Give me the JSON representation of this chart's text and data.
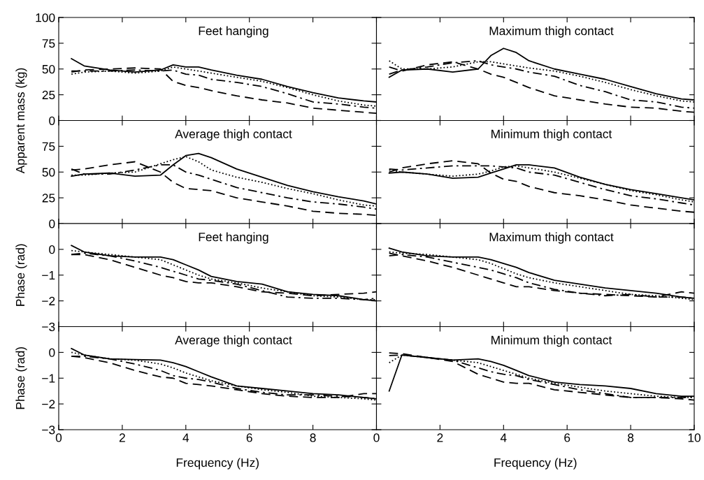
{
  "chart_data": [
    {
      "type": "line",
      "title": "Feet hanging",
      "ylabel": "Apparent mass (kg)",
      "x": [
        0.4,
        0.8,
        1.6,
        2.4,
        3.2,
        3.6,
        4,
        4.4,
        4.8,
        5.6,
        6.4,
        7.2,
        8,
        8.8,
        9.6,
        10
      ],
      "xlim": [
        0,
        10
      ],
      "xticks": [
        0,
        2,
        4,
        6,
        8
      ],
      "ylim": [
        0,
        100
      ],
      "yticks": [
        0,
        25,
        50,
        75,
        100
      ],
      "tick_labels": "y",
      "grid": false,
      "series": [
        {
          "color": "#000000",
          "line_style": "solid",
          "values": [
            60,
            53,
            49,
            47,
            49,
            54,
            52,
            52,
            49,
            44,
            40,
            33,
            27,
            22,
            19,
            18
          ]
        },
        {
          "color": "#000000",
          "line_style": "dotted",
          "values": [
            45,
            47,
            48,
            46,
            48,
            52,
            50,
            48,
            46,
            42,
            38,
            32,
            25,
            19,
            15,
            14
          ]
        },
        {
          "color": "#000000",
          "line_style": "dashdot",
          "values": [
            48,
            48,
            48,
            49,
            48,
            49,
            45,
            44,
            40,
            37,
            33,
            26,
            18,
            16,
            13,
            12
          ]
        },
        {
          "color": "#000000",
          "line_style": "dashed",
          "values": [
            47,
            49,
            50,
            51,
            50,
            38,
            34,
            32,
            29,
            24,
            20,
            17,
            12,
            10,
            8,
            7
          ]
        }
      ]
    },
    {
      "type": "line",
      "title": "Maximum thigh contact",
      "x": [
        0.4,
        0.8,
        1.6,
        2.4,
        3.2,
        3.6,
        4,
        4.4,
        4.8,
        5.6,
        6.4,
        7.2,
        8,
        8.8,
        9.6,
        10
      ],
      "xlim": [
        0,
        10
      ],
      "xticks": [
        0,
        2,
        4,
        6,
        8,
        10
      ],
      "ylim": [
        0,
        100
      ],
      "yticks": [
        0,
        25,
        50,
        75,
        100
      ],
      "tick_labels": false,
      "grid": false,
      "series": [
        {
          "color": "#000000",
          "line_style": "solid",
          "values": [
            42,
            49,
            50,
            47,
            50,
            63,
            70,
            66,
            58,
            50,
            45,
            40,
            33,
            26,
            21,
            20
          ]
        },
        {
          "color": "#000000",
          "line_style": "dotted",
          "values": [
            58,
            50,
            50,
            52,
            57,
            57,
            55,
            53,
            51,
            48,
            43,
            37,
            30,
            24,
            19,
            18
          ]
        },
        {
          "color": "#000000",
          "line_style": "dashdot",
          "values": [
            45,
            49,
            52,
            56,
            58,
            54,
            52,
            50,
            47,
            43,
            34,
            28,
            20,
            18,
            13,
            12
          ]
        },
        {
          "color": "#000000",
          "line_style": "dashed",
          "values": [
            52,
            48,
            54,
            57,
            50,
            45,
            42,
            37,
            32,
            24,
            20,
            16,
            13,
            12,
            9,
            8
          ]
        }
      ]
    },
    {
      "type": "line",
      "title": "Average thigh contact",
      "x": [
        0.4,
        0.8,
        1.6,
        2.4,
        3.2,
        3.6,
        4,
        4.4,
        4.8,
        5.6,
        6.4,
        7.2,
        8,
        8.8,
        9.6,
        10
      ],
      "xlim": [
        0,
        10
      ],
      "xticks": [
        0,
        2,
        4,
        6,
        8
      ],
      "ylim": [
        0,
        100
      ],
      "yticks": [
        0,
        25,
        50,
        75
      ],
      "tick_labels": "y",
      "grid": false,
      "series": [
        {
          "color": "#000000",
          "line_style": "solid",
          "values": [
            46,
            48,
            49,
            46,
            47,
            57,
            66,
            68,
            64,
            53,
            45,
            37,
            31,
            26,
            22,
            19
          ]
        },
        {
          "color": "#000000",
          "line_style": "dotted",
          "values": [
            47,
            47,
            49,
            50,
            58,
            62,
            65,
            60,
            52,
            45,
            40,
            34,
            29,
            23,
            18,
            17
          ]
        },
        {
          "color": "#000000",
          "line_style": "dashdot",
          "values": [
            53,
            48,
            48,
            52,
            57,
            57,
            50,
            47,
            43,
            35,
            30,
            25,
            21,
            19,
            16,
            14
          ]
        },
        {
          "color": "#000000",
          "line_style": "dashed",
          "values": [
            52,
            53,
            57,
            60,
            50,
            40,
            34,
            33,
            32,
            25,
            21,
            17,
            12,
            10,
            9,
            8
          ]
        }
      ]
    },
    {
      "type": "line",
      "title": "Minimum thigh contact",
      "x": [
        0.4,
        0.8,
        1.6,
        2.4,
        3.2,
        3.6,
        4,
        4.4,
        4.8,
        5.6,
        6.4,
        7.2,
        8,
        8.8,
        9.6,
        10
      ],
      "xlim": [
        0,
        10
      ],
      "xticks": [
        0,
        2,
        4,
        6,
        8,
        10
      ],
      "ylim": [
        0,
        100
      ],
      "yticks": [
        0,
        25,
        50,
        75,
        100
      ],
      "tick_labels": false,
      "grid": false,
      "series": [
        {
          "color": "#000000",
          "line_style": "solid",
          "values": [
            49,
            50,
            48,
            44,
            45,
            49,
            53,
            57,
            57,
            54,
            45,
            38,
            33,
            29,
            25,
            23
          ]
        },
        {
          "color": "#000000",
          "line_style": "dotted",
          "values": [
            52,
            50,
            48,
            46,
            48,
            51,
            55,
            56,
            54,
            50,
            44,
            38,
            32,
            28,
            23,
            21
          ]
        },
        {
          "color": "#000000",
          "line_style": "dashdot",
          "values": [
            53,
            52,
            54,
            56,
            56,
            56,
            55,
            54,
            50,
            47,
            40,
            33,
            27,
            24,
            20,
            18
          ]
        },
        {
          "color": "#000000",
          "line_style": "dashed",
          "values": [
            50,
            54,
            58,
            61,
            58,
            49,
            43,
            41,
            36,
            30,
            27,
            23,
            18,
            15,
            12,
            11
          ]
        }
      ]
    },
    {
      "type": "line",
      "title": "Feet hanging",
      "ylabel": "Phase (rad)",
      "x": [
        0.4,
        0.8,
        1.6,
        2.4,
        3.2,
        3.6,
        4,
        4.4,
        4.8,
        5.6,
        6.4,
        7.2,
        8,
        8.8,
        9.6,
        10
      ],
      "xlim": [
        0,
        10
      ],
      "xticks": [
        0,
        2,
        4,
        6,
        8
      ],
      "ylim": [
        -3,
        1
      ],
      "yticks": [
        -3,
        -2,
        -1,
        0
      ],
      "tick_labels": "y",
      "grid": false,
      "series": [
        {
          "color": "#000000",
          "line_style": "solid",
          "values": [
            0.15,
            -0.1,
            -0.25,
            -0.3,
            -0.3,
            -0.4,
            -0.6,
            -0.8,
            -1.05,
            -1.25,
            -1.35,
            -1.65,
            -1.75,
            -1.8,
            -1.95,
            -2.0
          ]
        },
        {
          "color": "#000000",
          "line_style": "dotted",
          "values": [
            -0.05,
            -0.1,
            -0.2,
            -0.3,
            -0.4,
            -0.6,
            -0.8,
            -1.0,
            -1.15,
            -1.3,
            -1.5,
            -1.65,
            -1.8,
            -1.85,
            -1.95,
            -1.95
          ]
        },
        {
          "color": "#000000",
          "line_style": "dashdot",
          "values": [
            -0.2,
            -0.15,
            -0.25,
            -0.45,
            -0.7,
            -0.85,
            -1.0,
            -1.15,
            -1.2,
            -1.35,
            -1.6,
            -1.85,
            -1.9,
            -1.9,
            -1.95,
            -1.9
          ]
        },
        {
          "color": "#000000",
          "line_style": "dashed",
          "values": [
            -0.2,
            -0.2,
            -0.4,
            -0.7,
            -1.0,
            -1.1,
            -1.25,
            -1.3,
            -1.3,
            -1.45,
            -1.65,
            -1.7,
            -1.8,
            -1.75,
            -1.7,
            -1.65
          ]
        }
      ]
    },
    {
      "type": "line",
      "title": "Maximum thigh contact",
      "x": [
        0.4,
        0.8,
        1.6,
        2.4,
        3.2,
        3.6,
        4,
        4.4,
        4.8,
        5.6,
        6.4,
        7.2,
        8,
        8.8,
        9.6,
        10
      ],
      "xlim": [
        0,
        10
      ],
      "xticks": [
        0,
        2,
        4,
        6,
        8,
        10
      ],
      "ylim": [
        -3,
        1
      ],
      "yticks": [
        -3,
        -2,
        -1,
        0,
        1
      ],
      "tick_labels": false,
      "grid": false,
      "series": [
        {
          "color": "#000000",
          "line_style": "solid",
          "values": [
            0.05,
            -0.1,
            -0.25,
            -0.3,
            -0.3,
            -0.4,
            -0.55,
            -0.7,
            -0.9,
            -1.2,
            -1.35,
            -1.5,
            -1.6,
            -1.7,
            -1.85,
            -1.9
          ]
        },
        {
          "color": "#000000",
          "line_style": "dotted",
          "values": [
            -0.1,
            -0.15,
            -0.2,
            -0.3,
            -0.4,
            -0.55,
            -0.75,
            -0.95,
            -1.1,
            -1.3,
            -1.45,
            -1.6,
            -1.75,
            -1.8,
            -1.9,
            -1.95
          ]
        },
        {
          "color": "#000000",
          "line_style": "dashdot",
          "values": [
            -0.25,
            -0.2,
            -0.3,
            -0.5,
            -0.7,
            -0.8,
            -0.95,
            -1.1,
            -1.3,
            -1.55,
            -1.7,
            -1.8,
            -1.75,
            -1.85,
            -1.85,
            -1.9
          ]
        },
        {
          "color": "#000000",
          "line_style": "dashed",
          "values": [
            -0.15,
            -0.25,
            -0.45,
            -0.7,
            -1.0,
            -1.15,
            -1.3,
            -1.45,
            -1.45,
            -1.6,
            -1.7,
            -1.75,
            -1.8,
            -1.85,
            -1.65,
            -1.7
          ]
        }
      ]
    },
    {
      "type": "line",
      "title": "Average thigh contact",
      "ylabel": "Phase (rad)",
      "xlabel": "Frequency (Hz)",
      "x": [
        0.4,
        0.8,
        1.6,
        2.4,
        3.2,
        3.6,
        4,
        4.4,
        4.8,
        5.6,
        6.4,
        7.2,
        8,
        8.8,
        9.6,
        10
      ],
      "xlim": [
        0,
        10
      ],
      "xticks": [
        0,
        2,
        4,
        6,
        8
      ],
      "ylim": [
        -3,
        1
      ],
      "yticks": [
        -3,
        -2,
        -1,
        0
      ],
      "grid": false,
      "series": [
        {
          "color": "#000000",
          "line_style": "solid",
          "values": [
            0.15,
            -0.1,
            -0.25,
            -0.28,
            -0.3,
            -0.4,
            -0.55,
            -0.75,
            -0.95,
            -1.3,
            -1.4,
            -1.5,
            -1.6,
            -1.65,
            -1.75,
            -1.8
          ]
        },
        {
          "color": "#000000",
          "line_style": "dotted",
          "values": [
            0.0,
            -0.1,
            -0.25,
            -0.3,
            -0.45,
            -0.6,
            -0.8,
            -0.95,
            -1.1,
            -1.3,
            -1.45,
            -1.55,
            -1.7,
            -1.75,
            -1.8,
            -1.85
          ]
        },
        {
          "color": "#000000",
          "line_style": "dashdot",
          "values": [
            -0.15,
            -0.15,
            -0.25,
            -0.45,
            -0.7,
            -0.9,
            -1.0,
            -1.05,
            -1.15,
            -1.4,
            -1.55,
            -1.65,
            -1.65,
            -1.7,
            -1.75,
            -1.8
          ]
        },
        {
          "color": "#000000",
          "line_style": "dashed",
          "values": [
            -0.15,
            -0.2,
            -0.4,
            -0.7,
            -0.95,
            -1.0,
            -1.2,
            -1.25,
            -1.3,
            -1.45,
            -1.6,
            -1.7,
            -1.75,
            -1.75,
            -1.6,
            -1.6
          ]
        }
      ]
    },
    {
      "type": "line",
      "title": "Minimum thigh contact",
      "xlabel": "Frequency (Hz)",
      "x": [
        0.4,
        0.8,
        1.6,
        2.4,
        3.2,
        3.6,
        4,
        4.4,
        4.8,
        5.6,
        6.4,
        7.2,
        8,
        8.8,
        9.6,
        10
      ],
      "xlim": [
        0,
        10
      ],
      "xticks": [
        0,
        2,
        4,
        6,
        8,
        10
      ],
      "ylim": [
        -3,
        1
      ],
      "yticks": [
        -3,
        -2,
        -1,
        0,
        1
      ],
      "tick_labels": "x",
      "grid": false,
      "series": [
        {
          "color": "#000000",
          "line_style": "solid",
          "values": [
            -1.5,
            -0.1,
            -0.2,
            -0.3,
            -0.25,
            -0.35,
            -0.5,
            -0.7,
            -0.9,
            -1.15,
            -1.25,
            -1.3,
            -1.4,
            -1.6,
            -1.7,
            -1.7
          ]
        },
        {
          "color": "#000000",
          "line_style": "dotted",
          "values": [
            -0.4,
            -0.1,
            -0.2,
            -0.3,
            -0.4,
            -0.55,
            -0.7,
            -0.85,
            -1.0,
            -1.2,
            -1.35,
            -1.5,
            -1.6,
            -1.7,
            -1.75,
            -1.75
          ]
        },
        {
          "color": "#000000",
          "line_style": "dashdot",
          "values": [
            -0.12,
            -0.1,
            -0.2,
            -0.3,
            -0.6,
            -0.75,
            -0.85,
            -0.9,
            -1.05,
            -1.25,
            -1.45,
            -1.6,
            -1.75,
            -1.75,
            -1.75,
            -1.72
          ]
        },
        {
          "color": "#000000",
          "line_style": "dashed",
          "values": [
            -0.02,
            -0.05,
            -0.2,
            -0.35,
            -0.85,
            -1.0,
            -1.15,
            -1.2,
            -1.2,
            -1.45,
            -1.55,
            -1.65,
            -1.75,
            -1.75,
            -1.8,
            -1.85
          ]
        }
      ]
    }
  ]
}
